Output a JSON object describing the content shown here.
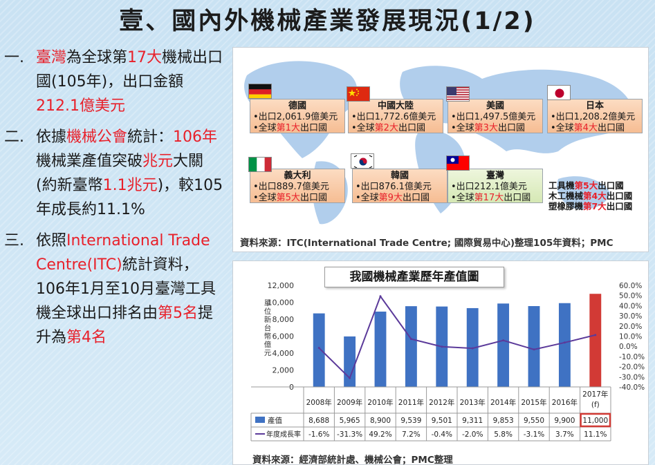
{
  "title": "壹、國內外機械產業發展現況(1/2)",
  "left": {
    "items": [
      {
        "num": "一.",
        "parts": [
          {
            "t": "臺灣",
            "red": true
          },
          {
            "t": "為全球第"
          },
          {
            "t": "17大",
            "red": true
          },
          {
            "t": "機械出口國(105年)，出口金額"
          },
          {
            "t": "212.1億美元",
            "red": true
          }
        ]
      },
      {
        "num": "二.",
        "parts": [
          {
            "t": "依據"
          },
          {
            "t": "機械公會",
            "red": true
          },
          {
            "t": "統計："
          },
          {
            "t": "106年",
            "red": true
          },
          {
            "t": "機械業產值突破"
          },
          {
            "t": "兆元",
            "red": true
          },
          {
            "t": "大關(約新臺幣"
          },
          {
            "t": "1.1兆元",
            "red": true
          },
          {
            "t": ")，較105年成長約11.1%"
          }
        ]
      },
      {
        "num": "三.",
        "parts": [
          {
            "t": "依照"
          },
          {
            "t": "International Trade Centre(ITC)",
            "red": true
          },
          {
            "t": "統計資料，106年1月至10月臺灣工具機全球出口排名由"
          },
          {
            "t": "第5名",
            "red": true
          },
          {
            "t": "提升為"
          },
          {
            "t": "第4名",
            "red": true
          }
        ]
      }
    ]
  },
  "countries": [
    {
      "name": "德國",
      "flag": "germany-flag-icon",
      "export": "•出口2,061.9億美元",
      "rank_pre": "•全球",
      "rank": "第1大",
      "rank_post": "出口國"
    },
    {
      "name": "中國大陸",
      "flag": "china-flag-icon",
      "export": "•出口1,772.6億美元",
      "rank_pre": "•全球",
      "rank": "第2大",
      "rank_post": "出口國"
    },
    {
      "name": "美國",
      "flag": "usa-flag-icon",
      "export": "•出口1,497.5億美元",
      "rank_pre": "•全球",
      "rank": "第3大",
      "rank_post": "出口國"
    },
    {
      "name": "日本",
      "flag": "japan-flag-icon",
      "export": "•出口1,208.2億美元",
      "rank_pre": "•全球",
      "rank": "第4大",
      "rank_post": "出口國"
    },
    {
      "name": "義大利",
      "flag": "italy-flag-icon",
      "export": "•出口889.7億美元",
      "rank_pre": "•全球",
      "rank": "第5大",
      "rank_post": "出口國"
    },
    {
      "name": "韓國",
      "flag": "korea-flag-icon",
      "export": "•出口876.1億美元",
      "rank_pre": "•全球",
      "rank": "第9大",
      "rank_post": "出口國"
    },
    {
      "name": "臺灣",
      "flag": "taiwan-flag-icon",
      "export": "•出口212.1億美元",
      "rank_pre": "•全球",
      "rank": "第17大",
      "rank_post": "出口國"
    }
  ],
  "taiwan_notes": [
    {
      "pre": "工具機",
      "rank": "第5大",
      "post": "出口國"
    },
    {
      "pre": "木工機械",
      "rank": "第4大",
      "post": "出口國"
    },
    {
      "pre": "塑橡膠機",
      "rank": "第7大",
      "post": "出口國"
    }
  ],
  "source_top": "資料來源：ITC(International Trade Centre; 國際貿易中心)整理105年資料；PMC",
  "source_bottom": "資料來源：經濟部統計處、機械公會；PMC整理",
  "colors": {
    "bar": "#3f72c3",
    "bar_highlight": "#d23a35",
    "line": "#5b3a9a",
    "red": "#e8202a"
  },
  "chart_data": {
    "type": "bar",
    "title": "我國機械產業歷年產值圖",
    "ylabel": "單位：新台幣億元",
    "categories": [
      "2008年",
      "2009年",
      "2010年",
      "2011年",
      "2012年",
      "2013年",
      "2014年",
      "2015年",
      "2016年",
      "2017年(f)"
    ],
    "ylim": [
      0,
      12000
    ],
    "yticks": [
      "12,000",
      "10,000",
      "8,000",
      "6,000",
      "4,000",
      "2,000",
      "0"
    ],
    "y2lim": [
      -40,
      60
    ],
    "y2ticks": [
      "60.0%",
      "50.0%",
      "40.0%",
      "30.0%",
      "20.0%",
      "10.0%",
      "0.0%",
      "-10.0%",
      "-20.0%",
      "-30.0%",
      "-40.0%"
    ],
    "series": [
      {
        "name": "產值",
        "type": "bar",
        "values": [
          8688,
          5965,
          8900,
          9539,
          9501,
          9311,
          9853,
          9550,
          9900,
          11000
        ],
        "labels": [
          "8,688",
          "5,965",
          "8,900",
          "9,539",
          "9,501",
          "9,311",
          "9,853",
          "9,550",
          "9,900",
          "11,000"
        ]
      },
      {
        "name": "年度成長率",
        "type": "line",
        "values": [
          -1.6,
          -31.3,
          49.2,
          7.2,
          -0.4,
          -2.0,
          5.8,
          -3.1,
          3.7,
          11.1
        ],
        "labels": [
          "-1.6%",
          "-31.3%",
          "49.2%",
          "7.2%",
          "-0.4%",
          "-2.0%",
          "5.8%",
          "-3.1%",
          "3.7%",
          "11.1%"
        ]
      }
    ],
    "legend": "table"
  }
}
